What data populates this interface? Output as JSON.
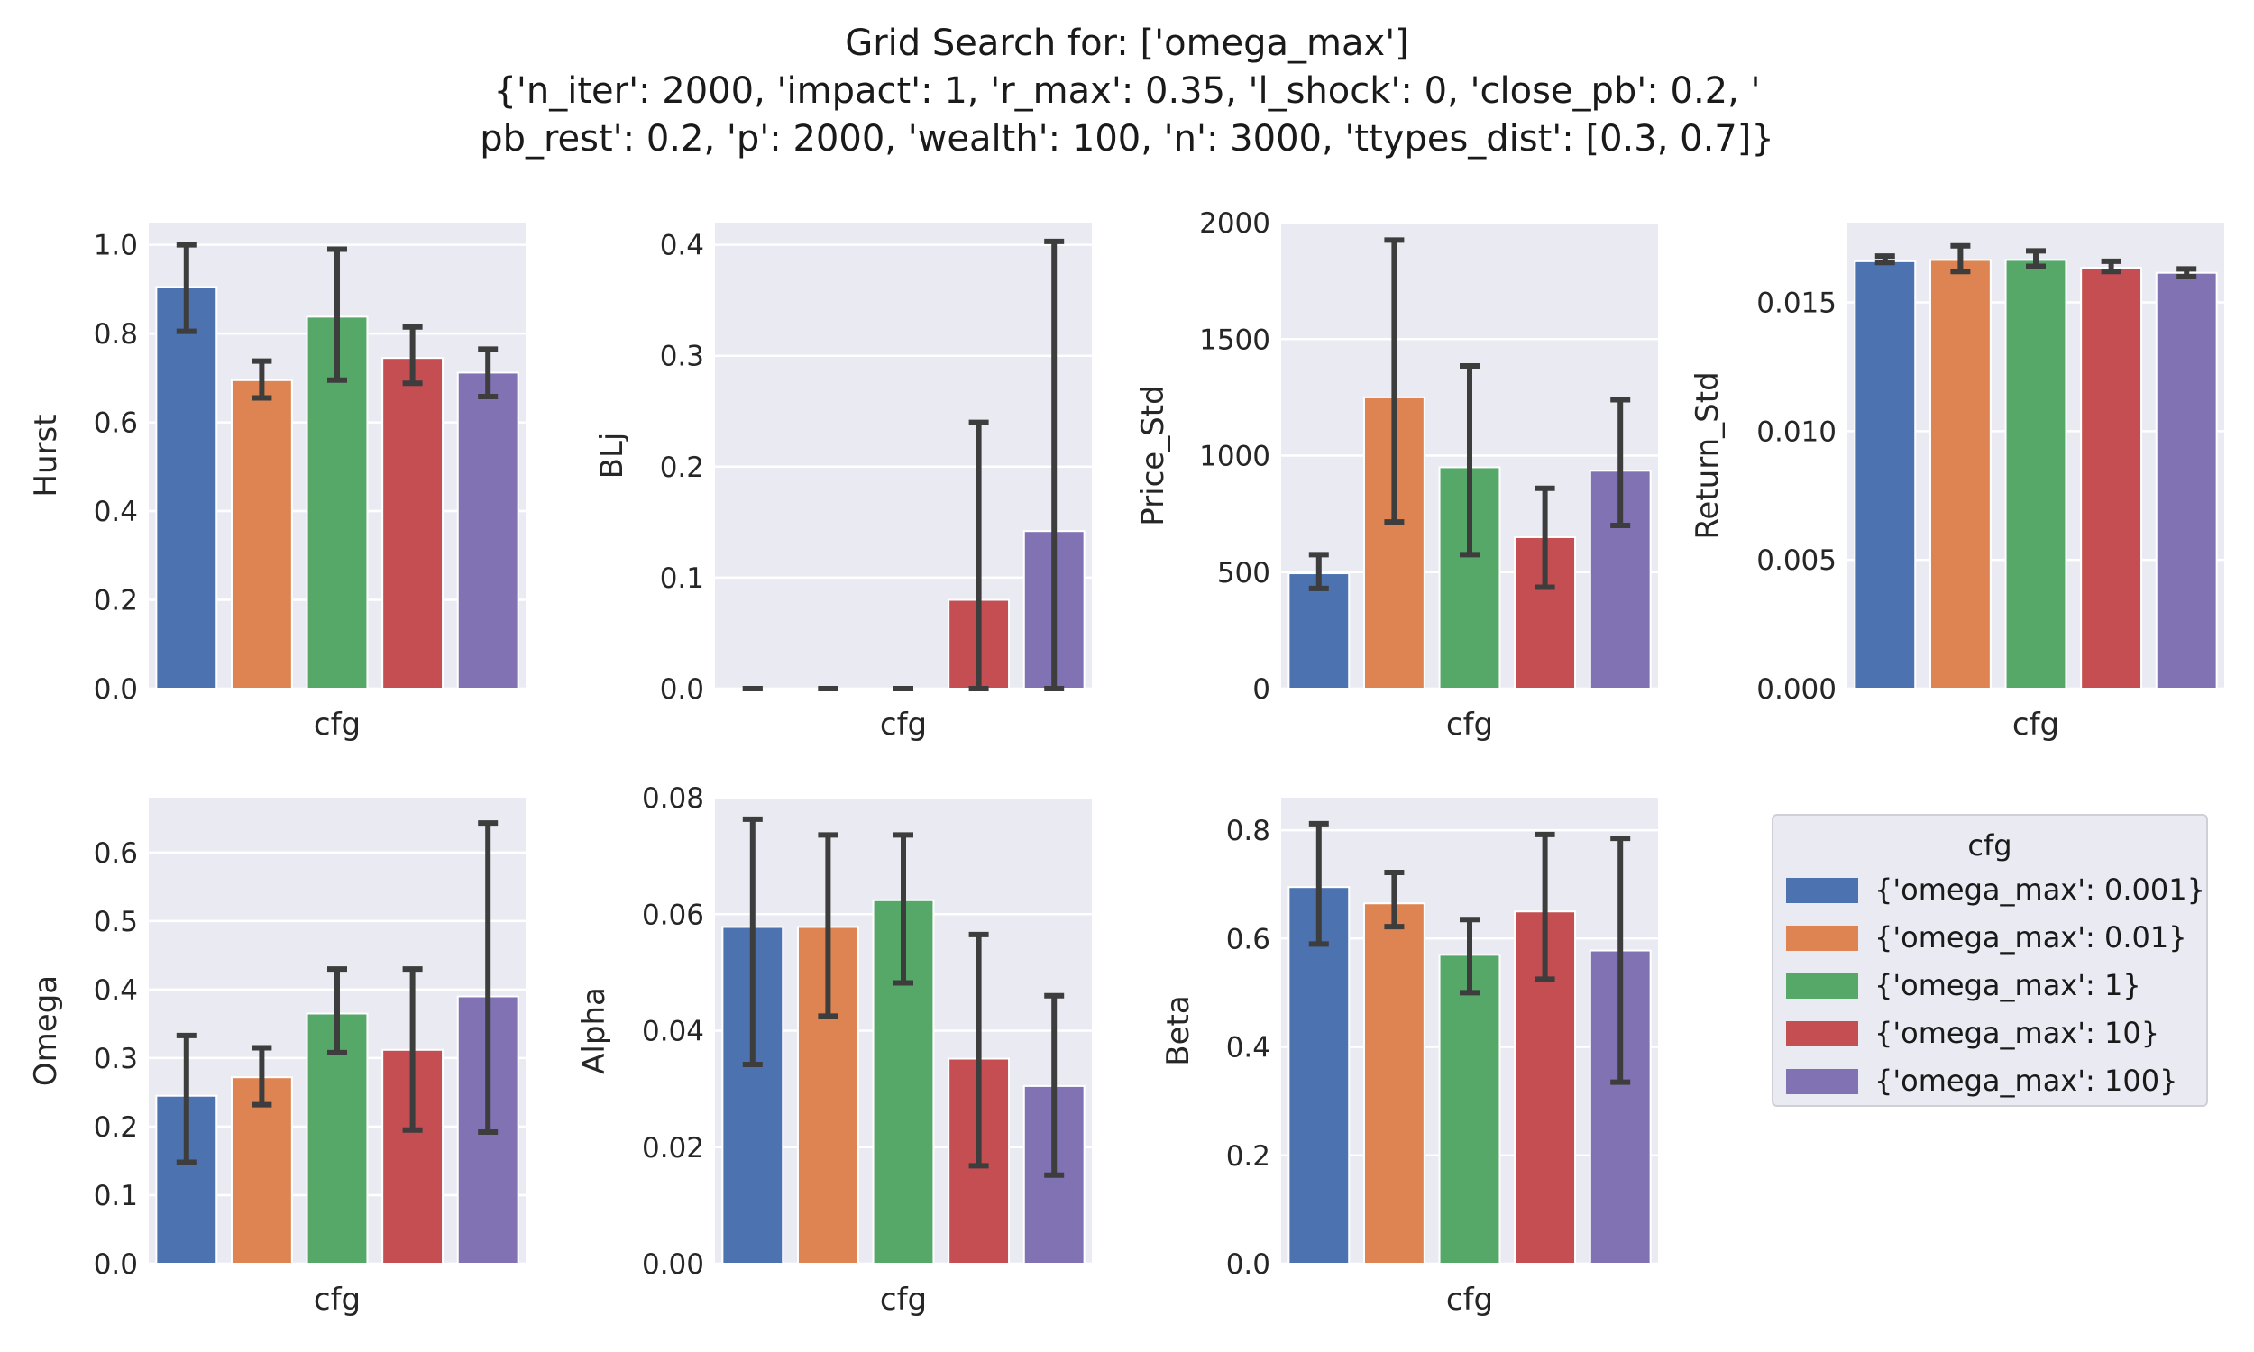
{
  "title_lines": [
    "Grid Search for: ['omega_max']",
    "{'n_iter': 2000, 'impact': 1, 'r_max': 0.35, 'l_shock': 0, 'close_pb': 0.2, '",
    "pb_rest': 0.2, 'p': 2000, 'wealth': 100, 'n': 3000, 'ttypes_dist': [0.3, 0.7]}"
  ],
  "legend": {
    "title": "cfg",
    "items": [
      {
        "label": "{'omega_max': 0.001}",
        "color": "#4c72b0"
      },
      {
        "label": "{'omega_max': 0.01}",
        "color": "#dd8452"
      },
      {
        "label": "{'omega_max': 1}",
        "color": "#55a868"
      },
      {
        "label": "{'omega_max': 10}",
        "color": "#c44e52"
      },
      {
        "label": "{'omega_max': 100}",
        "color": "#8172b3"
      }
    ]
  },
  "chart_data": [
    {
      "type": "bar",
      "xlabel": "cfg",
      "ylabel": "Hurst",
      "categories": [
        "{'omega_max': 0.001}",
        "{'omega_max': 0.01}",
        "{'omega_max': 1}",
        "{'omega_max': 10}",
        "{'omega_max': 100}"
      ],
      "values": [
        0.905,
        0.695,
        0.838,
        0.745,
        0.712
      ],
      "err_low": [
        0.805,
        0.655,
        0.695,
        0.688,
        0.658
      ],
      "err_high": [
        1.0,
        0.738,
        0.99,
        0.815,
        0.765
      ],
      "ylim": [
        0,
        1.05
      ],
      "yticks": [
        0.0,
        0.2,
        0.4,
        0.6,
        0.8,
        1.0
      ],
      "decimals": 1
    },
    {
      "type": "bar",
      "xlabel": "cfg",
      "ylabel": "BLj",
      "categories": [
        "{'omega_max': 0.001}",
        "{'omega_max': 0.01}",
        "{'omega_max': 1}",
        "{'omega_max': 10}",
        "{'omega_max': 100}"
      ],
      "values": [
        0.0,
        0.0,
        0.0,
        0.08,
        0.142
      ],
      "err_low": [
        0.0,
        0.0,
        0.0,
        0.0,
        0.0
      ],
      "err_high": [
        0.0,
        0.0,
        0.0,
        0.24,
        0.403
      ],
      "ylim": [
        0,
        0.42
      ],
      "yticks": [
        0.0,
        0.1,
        0.2,
        0.3,
        0.4
      ],
      "decimals": 1
    },
    {
      "type": "bar",
      "xlabel": "cfg",
      "ylabel": "Price_Std",
      "categories": [
        "{'omega_max': 0.001}",
        "{'omega_max': 0.01}",
        "{'omega_max': 1}",
        "{'omega_max': 10}",
        "{'omega_max': 100}"
      ],
      "values": [
        495,
        1250,
        950,
        650,
        935
      ],
      "err_low": [
        430,
        715,
        575,
        435,
        700
      ],
      "err_high": [
        575,
        1925,
        1385,
        860,
        1240
      ],
      "ylim": [
        0,
        2000
      ],
      "yticks": [
        0,
        500,
        1000,
        1500,
        2000
      ],
      "decimals": 0
    },
    {
      "type": "bar",
      "xlabel": "cfg",
      "ylabel": "Return_Std",
      "categories": [
        "{'omega_max': 0.001}",
        "{'omega_max': 0.01}",
        "{'omega_max': 1}",
        "{'omega_max': 10}",
        "{'omega_max': 100}"
      ],
      "values": [
        0.0166,
        0.01665,
        0.01665,
        0.01635,
        0.01615
      ],
      "err_low": [
        0.01655,
        0.0162,
        0.0164,
        0.0162,
        0.016
      ],
      "err_high": [
        0.0168,
        0.0172,
        0.017,
        0.0166,
        0.0163
      ],
      "ylim": [
        0,
        0.0181
      ],
      "yticks": [
        0.0,
        0.005,
        0.01,
        0.015
      ],
      "decimals": 3
    },
    {
      "type": "bar",
      "xlabel": "cfg",
      "ylabel": "Omega",
      "categories": [
        "{'omega_max': 0.001}",
        "{'omega_max': 0.01}",
        "{'omega_max': 1}",
        "{'omega_max': 10}",
        "{'omega_max': 100}"
      ],
      "values": [
        0.245,
        0.272,
        0.365,
        0.312,
        0.39
      ],
      "err_low": [
        0.148,
        0.232,
        0.308,
        0.195,
        0.192
      ],
      "err_high": [
        0.333,
        0.315,
        0.43,
        0.43,
        0.643
      ],
      "ylim": [
        0,
        0.68
      ],
      "yticks": [
        0.0,
        0.1,
        0.2,
        0.3,
        0.4,
        0.5,
        0.6
      ],
      "decimals": 1
    },
    {
      "type": "bar",
      "xlabel": "cfg",
      "ylabel": "Alpha",
      "categories": [
        "{'omega_max': 0.001}",
        "{'omega_max': 0.01}",
        "{'omega_max': 1}",
        "{'omega_max': 10}",
        "{'omega_max': 100}"
      ],
      "values": [
        0.0578,
        0.0578,
        0.0624,
        0.0352,
        0.0305
      ],
      "err_low": [
        0.0342,
        0.0425,
        0.0482,
        0.0168,
        0.0152
      ],
      "err_high": [
        0.0763,
        0.0736,
        0.0736,
        0.0565,
        0.046
      ],
      "ylim": [
        0,
        0.08
      ],
      "yticks": [
        0.0,
        0.02,
        0.04,
        0.06,
        0.08
      ],
      "decimals": 2
    },
    {
      "type": "bar",
      "xlabel": "cfg",
      "ylabel": "Beta",
      "categories": [
        "{'omega_max': 0.001}",
        "{'omega_max': 0.01}",
        "{'omega_max': 1}",
        "{'omega_max': 10}",
        "{'omega_max': 100}"
      ],
      "values": [
        0.695,
        0.665,
        0.57,
        0.65,
        0.578
      ],
      "err_low": [
        0.59,
        0.622,
        0.5,
        0.525,
        0.335
      ],
      "err_high": [
        0.812,
        0.722,
        0.635,
        0.792,
        0.785
      ],
      "ylim": [
        0,
        0.86
      ],
      "yticks": [
        0.0,
        0.2,
        0.4,
        0.6,
        0.8
      ],
      "decimals": 1
    }
  ]
}
